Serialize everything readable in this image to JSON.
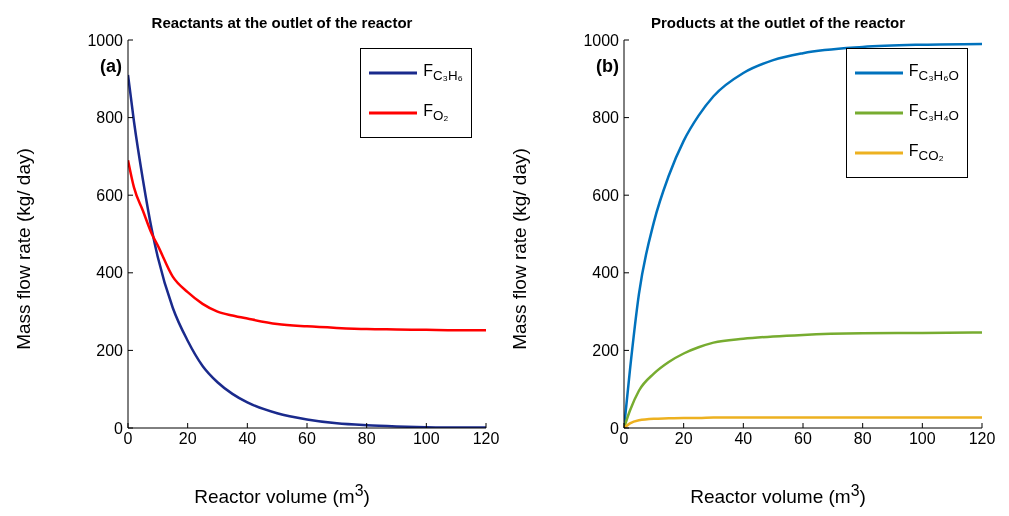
{
  "chart_data": [
    {
      "type": "line",
      "title": "Reactants at the outlet of the reactor",
      "xlabel": "Reactor volume (m$^{3}$)",
      "ylabel": "Mass flow rate (kg/ day)",
      "annotations": [
        "(a)"
      ],
      "xlim": [
        0,
        120
      ],
      "xticks": [
        0,
        20,
        40,
        60,
        80,
        100,
        120
      ],
      "ylim": [
        0,
        1000
      ],
      "yticks": [
        0,
        200,
        400,
        600,
        800,
        1000
      ],
      "grid": false,
      "legend": "top right",
      "marker": "none",
      "line_style": "solid",
      "x": [
        0,
        2,
        5,
        8,
        10,
        15,
        20,
        25,
        30,
        35,
        40,
        50,
        60,
        70,
        80,
        90,
        100,
        110,
        120
      ],
      "series": [
        {
          "name": "F$_{C₃H₆}$",
          "color": "#1a2a8c",
          "values": [
            910,
            790,
            640,
            510,
            440,
            310,
            225,
            160,
            118,
            88,
            66,
            38,
            22,
            12,
            7,
            4,
            2,
            1,
            1
          ]
        },
        {
          "name": "F$_{O₂}$",
          "color": "#ff0000",
          "values": [
            690,
            620,
            560,
            500,
            470,
            390,
            350,
            320,
            300,
            290,
            282,
            268,
            262,
            258,
            255,
            254,
            253,
            252,
            252
          ]
        }
      ]
    },
    {
      "type": "line",
      "title": "Products at the outlet of the reactor",
      "xlabel": "Reactor volume (m$^{3}$)",
      "ylabel": "Mass flow rate (kg/ day)",
      "annotations": [
        "(b)"
      ],
      "xlim": [
        0,
        120
      ],
      "xticks": [
        0,
        20,
        40,
        60,
        80,
        100,
        120
      ],
      "ylim": [
        0,
        1000
      ],
      "yticks": [
        0,
        200,
        400,
        600,
        800,
        1000
      ],
      "grid": false,
      "legend": "top right",
      "marker": "none",
      "line_style": "solid",
      "x": [
        0,
        2,
        5,
        10,
        15,
        20,
        25,
        30,
        40,
        50,
        60,
        80,
        100,
        120
      ],
      "series": [
        {
          "name": "F$_{C₃H₆O}$",
          "color": "#0072bd",
          "values": [
            0,
            150,
            345,
            530,
            650,
            740,
            805,
            855,
            915,
            948,
            966,
            982,
            988,
            990
          ]
        },
        {
          "name": "F$_{C₃H₄O}$",
          "color": "#77ac30",
          "values": [
            0,
            45,
            96,
            140,
            170,
            192,
            208,
            220,
            230,
            236,
            240,
            244,
            245,
            246
          ]
        },
        {
          "name": "F$_{CO₂}$",
          "color": "#edb120",
          "values": [
            0,
            12,
            20,
            24,
            25,
            26,
            26,
            27,
            27,
            27,
            27,
            27,
            27,
            27
          ]
        }
      ]
    }
  ]
}
